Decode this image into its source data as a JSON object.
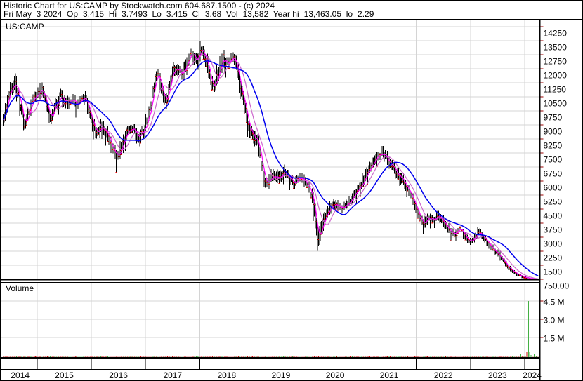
{
  "header": {
    "title_line": "Historic Chart for US:CAMP by Stockwatch.com 604.687.1500 - (c) 2024",
    "quote_line": "Fri May  3 2024  Op=3.415  Hi=3.7493  Lo=3.415  Cl=3.68  Vol=13,582  Year hi=13,463.05  lo=2.29"
  },
  "chart": {
    "symbol_label": "US:CAMP",
    "volume_label": "Volume"
  },
  "quote": {
    "date": "Fri May 3 2024",
    "open": "3.415",
    "high": "3.7493",
    "low": "3.415",
    "close": "3.68",
    "volume": "13,582",
    "year_high": "13,463.05",
    "year_low": "2.29"
  },
  "colors": {
    "grid": "#d4d4d4",
    "text": "#000000",
    "border": "#000000",
    "bar": "#000000",
    "bar_tick": "#e00000",
    "axis_tick": "#990000",
    "vol_up": "#44b044",
    "vol_down": "#cc1111",
    "ma_fast": "#ff00ff",
    "ma_mid": "#cc66cc",
    "ma_slow": "#0000ee"
  },
  "chart_data": {
    "type": "ohlc+volume",
    "title": "Historic Chart for US:CAMP",
    "x_axis": {
      "years": [
        2014,
        2015,
        2016,
        2017,
        2018,
        2019,
        2020,
        2021,
        2022,
        2023,
        2024
      ],
      "year_lines": [
        2015,
        2016,
        2017,
        2018,
        2019,
        2020,
        2021,
        2022,
        2023,
        2024
      ],
      "range": [
        2014.37,
        2024.25
      ]
    },
    "price_axis": {
      "ticks": [
        {
          "label": "14250",
          "value": 14250
        },
        {
          "label": "13500",
          "value": 13500
        },
        {
          "label": "12750",
          "value": 12750
        },
        {
          "label": "12000",
          "value": 12000
        },
        {
          "label": "11250",
          "value": 11250
        },
        {
          "label": "10500",
          "value": 10500
        },
        {
          "label": "9750",
          "value": 9750
        },
        {
          "label": "9000",
          "value": 9000
        },
        {
          "label": "8250",
          "value": 8250
        },
        {
          "label": "7500",
          "value": 7500
        },
        {
          "label": "6750",
          "value": 6750
        },
        {
          "label": "6000",
          "value": 6000
        },
        {
          "label": "5250",
          "value": 5250
        },
        {
          "label": "4500",
          "value": 4500
        },
        {
          "label": "3750",
          "value": 3750
        },
        {
          "label": "3000",
          "value": 3000
        },
        {
          "label": "2250",
          "value": 2250
        },
        {
          "label": "1500",
          "value": 1500
        },
        {
          "label": "750.00",
          "value": 750
        }
      ],
      "grid_step": 750
    },
    "volume_axis": {
      "ticks": [
        {
          "label": "4.5 M",
          "value": 4500000
        },
        {
          "label": "3.0 M",
          "value": 3000000
        },
        {
          "label": "1.5 M",
          "value": 1500000
        }
      ]
    },
    "series": {
      "price_anchors": [
        [
          2014.37,
          9300,
          500
        ],
        [
          2014.45,
          10400,
          500
        ],
        [
          2014.53,
          11000,
          500
        ],
        [
          2014.6,
          11200,
          480
        ],
        [
          2014.68,
          10100,
          480
        ],
        [
          2014.76,
          8900,
          480
        ],
        [
          2014.84,
          9600,
          450
        ],
        [
          2014.92,
          10400,
          450
        ],
        [
          2015.0,
          10700,
          450
        ],
        [
          2015.08,
          10900,
          450
        ],
        [
          2015.16,
          10100,
          450
        ],
        [
          2015.24,
          9300,
          450
        ],
        [
          2015.32,
          10000,
          420
        ],
        [
          2015.42,
          10500,
          420
        ],
        [
          2015.52,
          10100,
          420
        ],
        [
          2015.62,
          10400,
          420
        ],
        [
          2015.72,
          10100,
          400
        ],
        [
          2015.82,
          10600,
          400
        ],
        [
          2015.92,
          10000,
          420
        ],
        [
          2016.02,
          9000,
          470
        ],
        [
          2016.1,
          8400,
          470
        ],
        [
          2016.2,
          9000,
          470
        ],
        [
          2016.3,
          8400,
          470
        ],
        [
          2016.4,
          7600,
          500
        ],
        [
          2016.48,
          7400,
          500
        ],
        [
          2016.56,
          7900,
          450
        ],
        [
          2016.66,
          8700,
          430
        ],
        [
          2016.76,
          8900,
          420
        ],
        [
          2016.86,
          8300,
          420
        ],
        [
          2016.96,
          8600,
          430
        ],
        [
          2017.06,
          9700,
          450
        ],
        [
          2017.14,
          10800,
          460
        ],
        [
          2017.22,
          11900,
          480
        ],
        [
          2017.3,
          10700,
          480
        ],
        [
          2017.38,
          10300,
          450
        ],
        [
          2017.46,
          11300,
          450
        ],
        [
          2017.56,
          12200,
          450
        ],
        [
          2017.66,
          11600,
          440
        ],
        [
          2017.76,
          12200,
          440
        ],
        [
          2017.86,
          12800,
          450
        ],
        [
          2017.94,
          12300,
          450
        ],
        [
          2018.02,
          13100,
          520
        ],
        [
          2018.1,
          12700,
          520
        ],
        [
          2018.18,
          11600,
          520
        ],
        [
          2018.26,
          10900,
          520
        ],
        [
          2018.34,
          11800,
          500
        ],
        [
          2018.42,
          12500,
          480
        ],
        [
          2018.5,
          12200,
          470
        ],
        [
          2018.58,
          12600,
          470
        ],
        [
          2018.66,
          12100,
          480
        ],
        [
          2018.74,
          11000,
          520
        ],
        [
          2018.82,
          10000,
          560
        ],
        [
          2018.9,
          8900,
          560
        ],
        [
          2018.98,
          8300,
          540
        ],
        [
          2019.06,
          8200,
          480
        ],
        [
          2019.12,
          7200,
          520
        ],
        [
          2019.18,
          6100,
          500
        ],
        [
          2019.26,
          5900,
          440
        ],
        [
          2019.34,
          6400,
          420
        ],
        [
          2019.44,
          6100,
          400
        ],
        [
          2019.54,
          6500,
          390
        ],
        [
          2019.64,
          6200,
          380
        ],
        [
          2019.74,
          5800,
          380
        ],
        [
          2019.84,
          6200,
          380
        ],
        [
          2019.94,
          6000,
          380
        ],
        [
          2020.02,
          5600,
          420
        ],
        [
          2020.1,
          4800,
          600
        ],
        [
          2020.17,
          2900,
          900
        ],
        [
          2020.24,
          3500,
          700
        ],
        [
          2020.32,
          4200,
          520
        ],
        [
          2020.42,
          4600,
          430
        ],
        [
          2020.52,
          4800,
          400
        ],
        [
          2020.62,
          4600,
          380
        ],
        [
          2020.72,
          4800,
          380
        ],
        [
          2020.82,
          5100,
          380
        ],
        [
          2020.92,
          5600,
          400
        ],
        [
          2021.02,
          6100,
          430
        ],
        [
          2021.12,
          6600,
          440
        ],
        [
          2021.22,
          7000,
          450
        ],
        [
          2021.32,
          7400,
          460
        ],
        [
          2021.4,
          7500,
          460
        ],
        [
          2021.48,
          7000,
          450
        ],
        [
          2021.58,
          6600,
          430
        ],
        [
          2021.68,
          6300,
          420
        ],
        [
          2021.78,
          5900,
          420
        ],
        [
          2021.88,
          5300,
          430
        ],
        [
          2021.96,
          4800,
          430
        ],
        [
          2022.04,
          4100,
          420
        ],
        [
          2022.12,
          3600,
          400
        ],
        [
          2022.2,
          4100,
          380
        ],
        [
          2022.3,
          3900,
          360
        ],
        [
          2022.4,
          4200,
          360
        ],
        [
          2022.5,
          3800,
          350
        ],
        [
          2022.6,
          3400,
          340
        ],
        [
          2022.7,
          3100,
          330
        ],
        [
          2022.8,
          3500,
          330
        ],
        [
          2022.9,
          3000,
          320
        ],
        [
          2023.0,
          2700,
          300
        ],
        [
          2023.08,
          3000,
          300
        ],
        [
          2023.16,
          3300,
          290
        ],
        [
          2023.26,
          2900,
          280
        ],
        [
          2023.36,
          2500,
          270
        ],
        [
          2023.46,
          2200,
          250
        ],
        [
          2023.56,
          1900,
          230
        ],
        [
          2023.66,
          1500,
          210
        ],
        [
          2023.76,
          1200,
          180
        ],
        [
          2023.86,
          1000,
          140
        ],
        [
          2023.96,
          880,
          110
        ],
        [
          2024.06,
          810,
          90
        ],
        [
          2024.18,
          760,
          80
        ],
        [
          2024.25,
          710,
          60
        ]
      ],
      "wicks": [
        {
          "t": 2014.6,
          "high": 11750
        },
        {
          "t": 2016.46,
          "low": 6450
        },
        {
          "t": 2018.02,
          "high": 13470
        },
        {
          "t": 2020.17,
          "low": 2330
        },
        {
          "t": 2021.38,
          "high": 7880
        }
      ],
      "moving_averages": [
        {
          "name": "ma-mid-line",
          "window": 13,
          "color_key": "ma_mid",
          "width": 1.2
        },
        {
          "name": "ma-fast-line",
          "window": 5,
          "color_key": "ma_fast",
          "width": 1.2
        },
        {
          "name": "ma-slow-line",
          "window": 30,
          "color_key": "ma_slow",
          "width": 1.5
        }
      ],
      "volume_spikes": [
        [
          2023.93,
          300000,
          "up"
        ],
        [
          2024.0,
          150000,
          "down"
        ],
        [
          2024.04,
          420000,
          "down"
        ],
        [
          2024.055,
          4650000,
          "up"
        ],
        [
          2024.085,
          420000,
          "up"
        ],
        [
          2024.12,
          200000,
          "up"
        ],
        [
          2024.17,
          300000,
          "up"
        ],
        [
          2024.22,
          140000,
          "up"
        ]
      ],
      "volume_base_max": 90000
    }
  }
}
